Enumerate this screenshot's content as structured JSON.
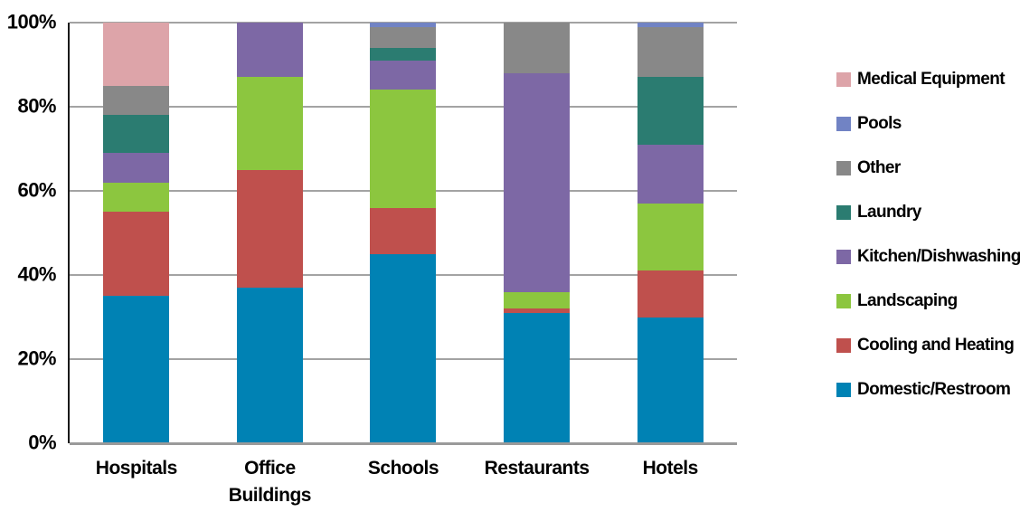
{
  "chart_data": {
    "type": "bar",
    "subtype": "stacked-100-percent",
    "title": "",
    "xlabel": "",
    "ylabel": "",
    "ylim": [
      0,
      100
    ],
    "grid": true,
    "legend_position": "right",
    "y_ticks": [
      "0%",
      "20%",
      "40%",
      "60%",
      "80%",
      "100%"
    ],
    "categories": [
      "Hospitals",
      "Office\nBuildings",
      "Schools",
      "Restaurants",
      "Hotels"
    ],
    "series": [
      {
        "name": "Medical Equipment",
        "color": "#dda4a9",
        "values": [
          15,
          0,
          0,
          0,
          0
        ]
      },
      {
        "name": "Pools",
        "color": "#7183c4",
        "values": [
          0,
          0,
          1,
          0,
          1
        ]
      },
      {
        "name": "Other",
        "color": "#888888",
        "values": [
          7,
          0,
          5,
          12,
          12
        ]
      },
      {
        "name": "Laundry",
        "color": "#2b7c71",
        "values": [
          9,
          0,
          3,
          0,
          16
        ]
      },
      {
        "name": "Kitchen/Dishwashing",
        "color": "#7d68a5",
        "values": [
          7,
          13,
          7,
          52,
          14
        ]
      },
      {
        "name": "Landscaping",
        "color": "#8cc63f",
        "values": [
          7,
          22,
          28,
          4,
          16
        ]
      },
      {
        "name": "Cooling and Heating",
        "color": "#bf504d",
        "values": [
          20,
          28,
          11,
          1,
          11
        ]
      },
      {
        "name": "Domestic/Restroom",
        "color": "#0082b4",
        "values": [
          35,
          37,
          45,
          31,
          30
        ]
      }
    ],
    "stack_order_note": "stacked bottom-to-top in reverse legend order (Domestic/Restroom at bottom)",
    "colors": {
      "gridline": "#a3a3a3",
      "axis": "#1a1a1a",
      "baseline": "#9a9a9a",
      "text": "#000000",
      "background": "#ffffff"
    }
  }
}
